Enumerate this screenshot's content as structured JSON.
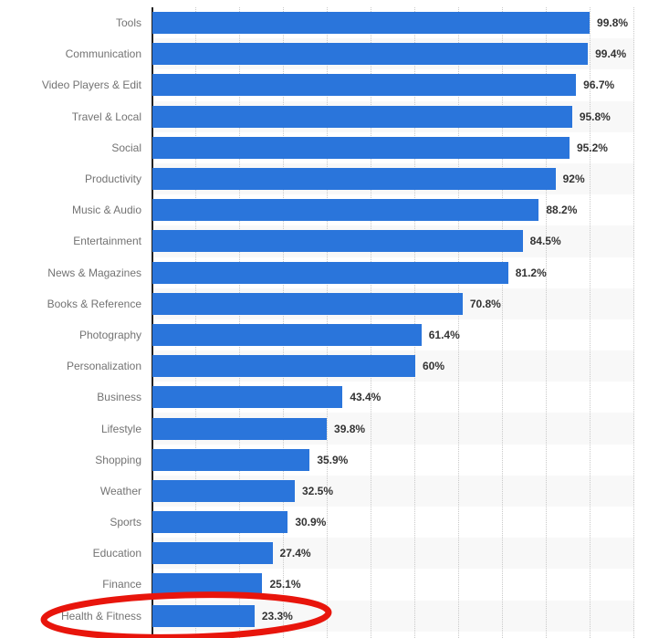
{
  "chart_data": {
    "type": "bar",
    "orientation": "horizontal",
    "title": "",
    "xlabel": "",
    "ylabel": "",
    "xlim": [
      0,
      110
    ],
    "gridline_interval_percent": 10,
    "grid": true,
    "legend": false,
    "bar_color": "#2a75db",
    "band_color": "#f8f8f8",
    "axis_color": "#222222",
    "gridline_color": "#c9c9c9",
    "category_label_color": "#737373",
    "value_label_color": "#333333",
    "categories": [
      "Tools",
      "Communication",
      "Video Players & Edit",
      "Travel & Local",
      "Social",
      "Productivity",
      "Music & Audio",
      "Entertainment",
      "News & Magazines",
      "Books & Reference",
      "Photography",
      "Personalization",
      "Business",
      "Lifestyle",
      "Shopping",
      "Weather",
      "Sports",
      "Education",
      "Finance",
      "Health & Fitness"
    ],
    "values": [
      99.8,
      99.4,
      96.7,
      95.8,
      95.2,
      92,
      88.2,
      84.5,
      81.2,
      70.8,
      61.4,
      60,
      43.4,
      39.8,
      35.9,
      32.5,
      30.9,
      27.4,
      25.1,
      23.3
    ],
    "value_labels": [
      "99.8%",
      "99.4%",
      "96.7%",
      "95.8%",
      "95.2%",
      "92%",
      "88.2%",
      "84.5%",
      "81.2%",
      "70.8%",
      "61.4%",
      "60%",
      "43.4%",
      "39.8%",
      "35.9%",
      "32.5%",
      "30.9%",
      "27.4%",
      "25.1%",
      "23.3%"
    ],
    "annotation": {
      "type": "ellipse",
      "target_category": "Health & Fitness",
      "color": "#e8150c"
    }
  }
}
